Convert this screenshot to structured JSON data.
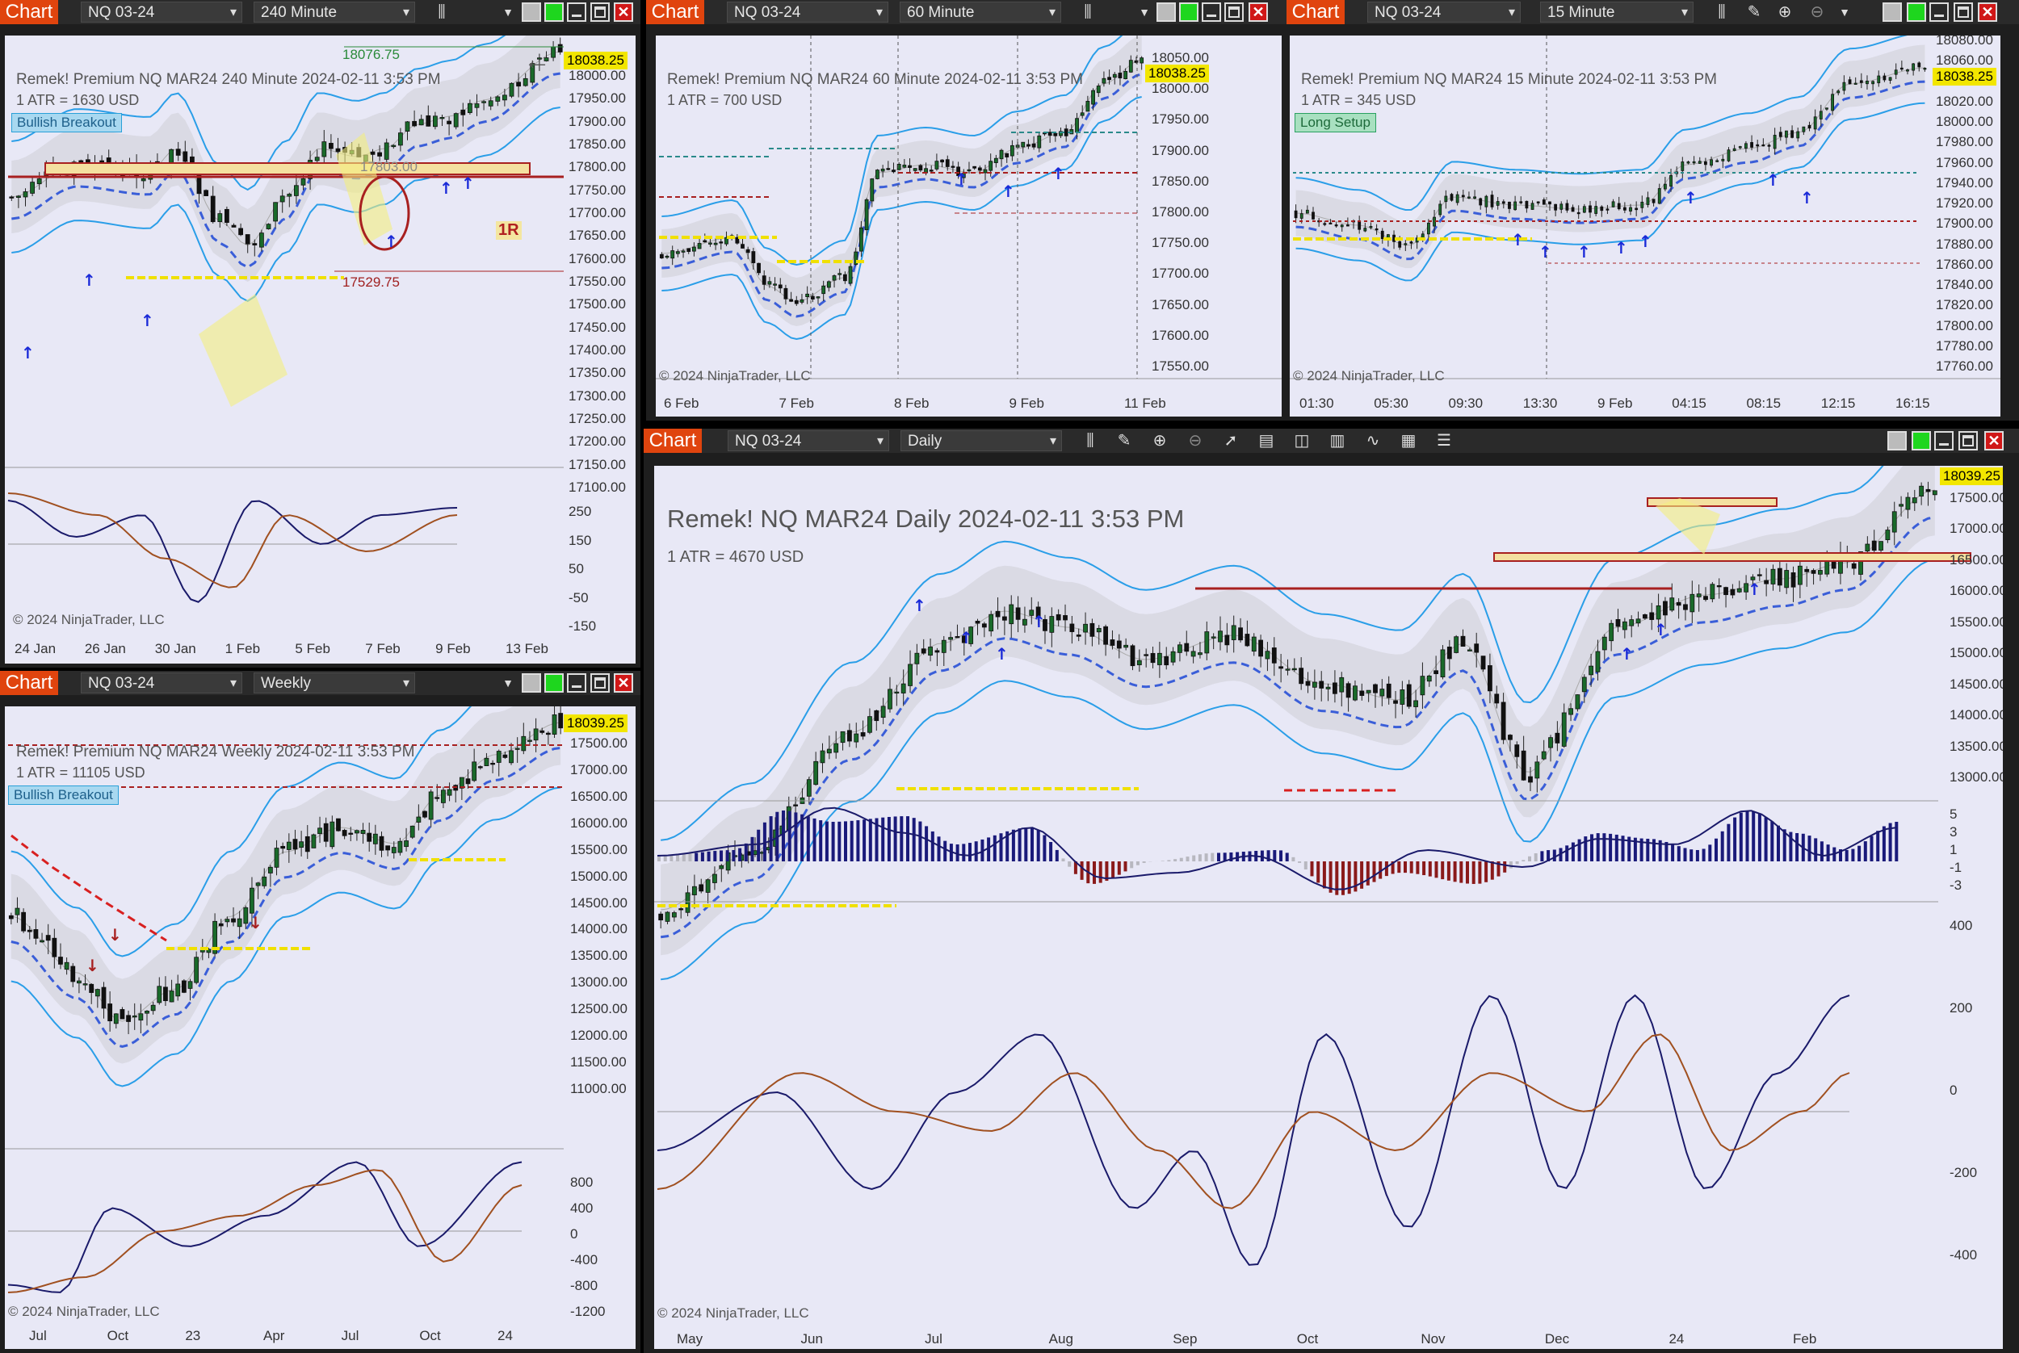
{
  "toolbar_label": "Chart",
  "copyright": "© 2024 NinjaTrader, LLC",
  "colors": {
    "chart_bg": "#e8e8f6",
    "band_blue": "#2a9ee8",
    "trail_blue": "#3a5ed8",
    "level_red": "#b02020",
    "price_tag": "#f2e600",
    "hist_navy": "#1a1a7a"
  },
  "windows": {
    "w240": {
      "instrument": "NQ 03-24",
      "timeframe": "240 Minute",
      "header": "Remek!  Premium  NQ MAR24  240 Minute  2024-02-11 3:53 PM",
      "atr": "1 ATR = 1630 USD",
      "badge": "Bullish Breakout",
      "last_price": "18038.25",
      "high_label": "18076.75",
      "low_label": "17529.75",
      "level_label": "17803.00",
      "r_label": "1R",
      "price_axis": [
        "18000.00",
        "17950.00",
        "17900.00",
        "17850.00",
        "17800.00",
        "17750.00",
        "17700.00",
        "17650.00",
        "17600.00",
        "17550.00",
        "17500.00",
        "17450.00",
        "17400.00",
        "17350.00",
        "17300.00",
        "17250.00",
        "17200.00",
        "17150.00",
        "17100.00"
      ],
      "osc_axis": [
        "250",
        "150",
        "50",
        "-50",
        "-150"
      ],
      "x_axis": [
        "24 Jan",
        "26 Jan",
        "30 Jan",
        "1 Feb",
        "5 Feb",
        "7 Feb",
        "9 Feb",
        "13 Feb"
      ]
    },
    "w60": {
      "instrument": "NQ 03-24",
      "timeframe": "60 Minute",
      "header": "Remek!  Premium  NQ MAR24  60 Minute  2024-02-11 3:53 PM",
      "atr": "1 ATR = 700 USD",
      "last_price": "18038.25",
      "price_axis": [
        "18050.00",
        "18000.00",
        "17950.00",
        "17900.00",
        "17850.00",
        "17800.00",
        "17750.00",
        "17700.00",
        "17650.00",
        "17600.00",
        "17550.00"
      ],
      "x_axis": [
        "6 Feb",
        "7 Feb",
        "8 Feb",
        "9 Feb",
        "11 Feb"
      ]
    },
    "w15": {
      "instrument": "NQ 03-24",
      "timeframe": "15 Minute",
      "header": "Remek!  Premium  NQ MAR24  15 Minute  2024-02-11 3:53 PM",
      "atr": "1 ATR = 345 USD",
      "badge": "Long Setup",
      "last_price": "18038.25",
      "price_axis": [
        "18080.00",
        "18060.00",
        "18040.00",
        "18020.00",
        "18000.00",
        "17980.00",
        "17960.00",
        "17940.00",
        "17920.00",
        "17900.00",
        "17880.00",
        "17860.00",
        "17840.00",
        "17820.00",
        "17800.00",
        "17780.00",
        "17760.00"
      ],
      "x_axis": [
        "01:30",
        "05:30",
        "09:30",
        "13:30",
        "9 Feb",
        "04:15",
        "08:15",
        "12:15",
        "16:15"
      ]
    },
    "weekly": {
      "instrument": "NQ 03-24",
      "timeframe": "Weekly",
      "header": "Remek!  Premium  NQ MAR24  Weekly  2024-02-11 3:53 PM",
      "atr": "1 ATR = 11105 USD",
      "badge": "Bullish Breakout",
      "last_price": "18039.25",
      "price_axis": [
        "17500.00",
        "17000.00",
        "16500.00",
        "16000.00",
        "15500.00",
        "15000.00",
        "14500.00",
        "14000.00",
        "13500.00",
        "13000.00",
        "12500.00",
        "12000.00",
        "11500.00",
        "11000.00"
      ],
      "osc_axis": [
        "800",
        "400",
        "0",
        "-400",
        "-800",
        "-1200"
      ],
      "x_axis": [
        "Jul",
        "Oct",
        "23",
        "Apr",
        "Jul",
        "Oct",
        "24"
      ]
    },
    "daily": {
      "instrument": "NQ 03-24",
      "timeframe": "Daily",
      "header": "Remek!  NQ MAR24  Daily  2024-02-11 3:53 PM",
      "atr": "1 ATR = 4670 USD",
      "last_price": "18039.25",
      "price_axis": [
        "17500.00",
        "17000.00",
        "16500.00",
        "16000.00",
        "15500.00",
        "15000.00",
        "14500.00",
        "14000.00",
        "13500.00",
        "13000.00"
      ],
      "hist_axis": [
        "5",
        "3",
        "1",
        "-1",
        "-3"
      ],
      "osc_axis": [
        "400",
        "200",
        "0",
        "-200",
        "-400"
      ],
      "x_axis": [
        "May",
        "Jun",
        "Jul",
        "Aug",
        "Sep",
        "Oct",
        "Nov",
        "Dec",
        "24",
        "Feb"
      ]
    }
  }
}
